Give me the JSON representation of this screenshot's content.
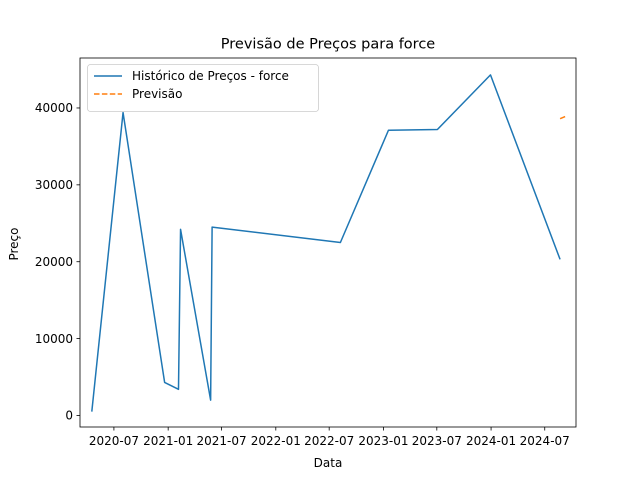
{
  "chart_data": {
    "type": "line",
    "title": "Previsão de Preços para force",
    "xlabel": "Data",
    "ylabel": "Preço",
    "x_ticks": [
      "2020-07",
      "2021-01",
      "2021-07",
      "2022-01",
      "2022-07",
      "2023-01",
      "2023-07",
      "2024-01",
      "2024-07"
    ],
    "y_ticks": [
      0,
      10000,
      20000,
      30000,
      40000
    ],
    "ylim": [
      -1500,
      46500
    ],
    "xlim": [
      "2020-03-08",
      "2024-10-15"
    ],
    "legend_position": "upper-left",
    "grid": false,
    "series": [
      {
        "name": "Histórico de Preços - force",
        "color": "#1f77b4",
        "style": "solid",
        "points": [
          {
            "x": "2020-04-17",
            "y": 500
          },
          {
            "x": "2020-08-01",
            "y": 39400
          },
          {
            "x": "2020-12-20",
            "y": 4300
          },
          {
            "x": "2021-02-05",
            "y": 3400
          },
          {
            "x": "2021-02-12",
            "y": 24200
          },
          {
            "x": "2021-05-25",
            "y": 2000
          },
          {
            "x": "2021-05-30",
            "y": 24500
          },
          {
            "x": "2022-08-08",
            "y": 22500
          },
          {
            "x": "2023-01-18",
            "y": 37100
          },
          {
            "x": "2023-07-03",
            "y": 37200
          },
          {
            "x": "2023-12-30",
            "y": 44300
          },
          {
            "x": "2024-08-22",
            "y": 20300
          }
        ]
      },
      {
        "name": "Previsão",
        "color": "#ff7f0e",
        "style": "dashed",
        "points": [
          {
            "x": "2024-08-22",
            "y": 38600
          },
          {
            "x": "2024-09-15",
            "y": 39000
          }
        ]
      }
    ]
  }
}
